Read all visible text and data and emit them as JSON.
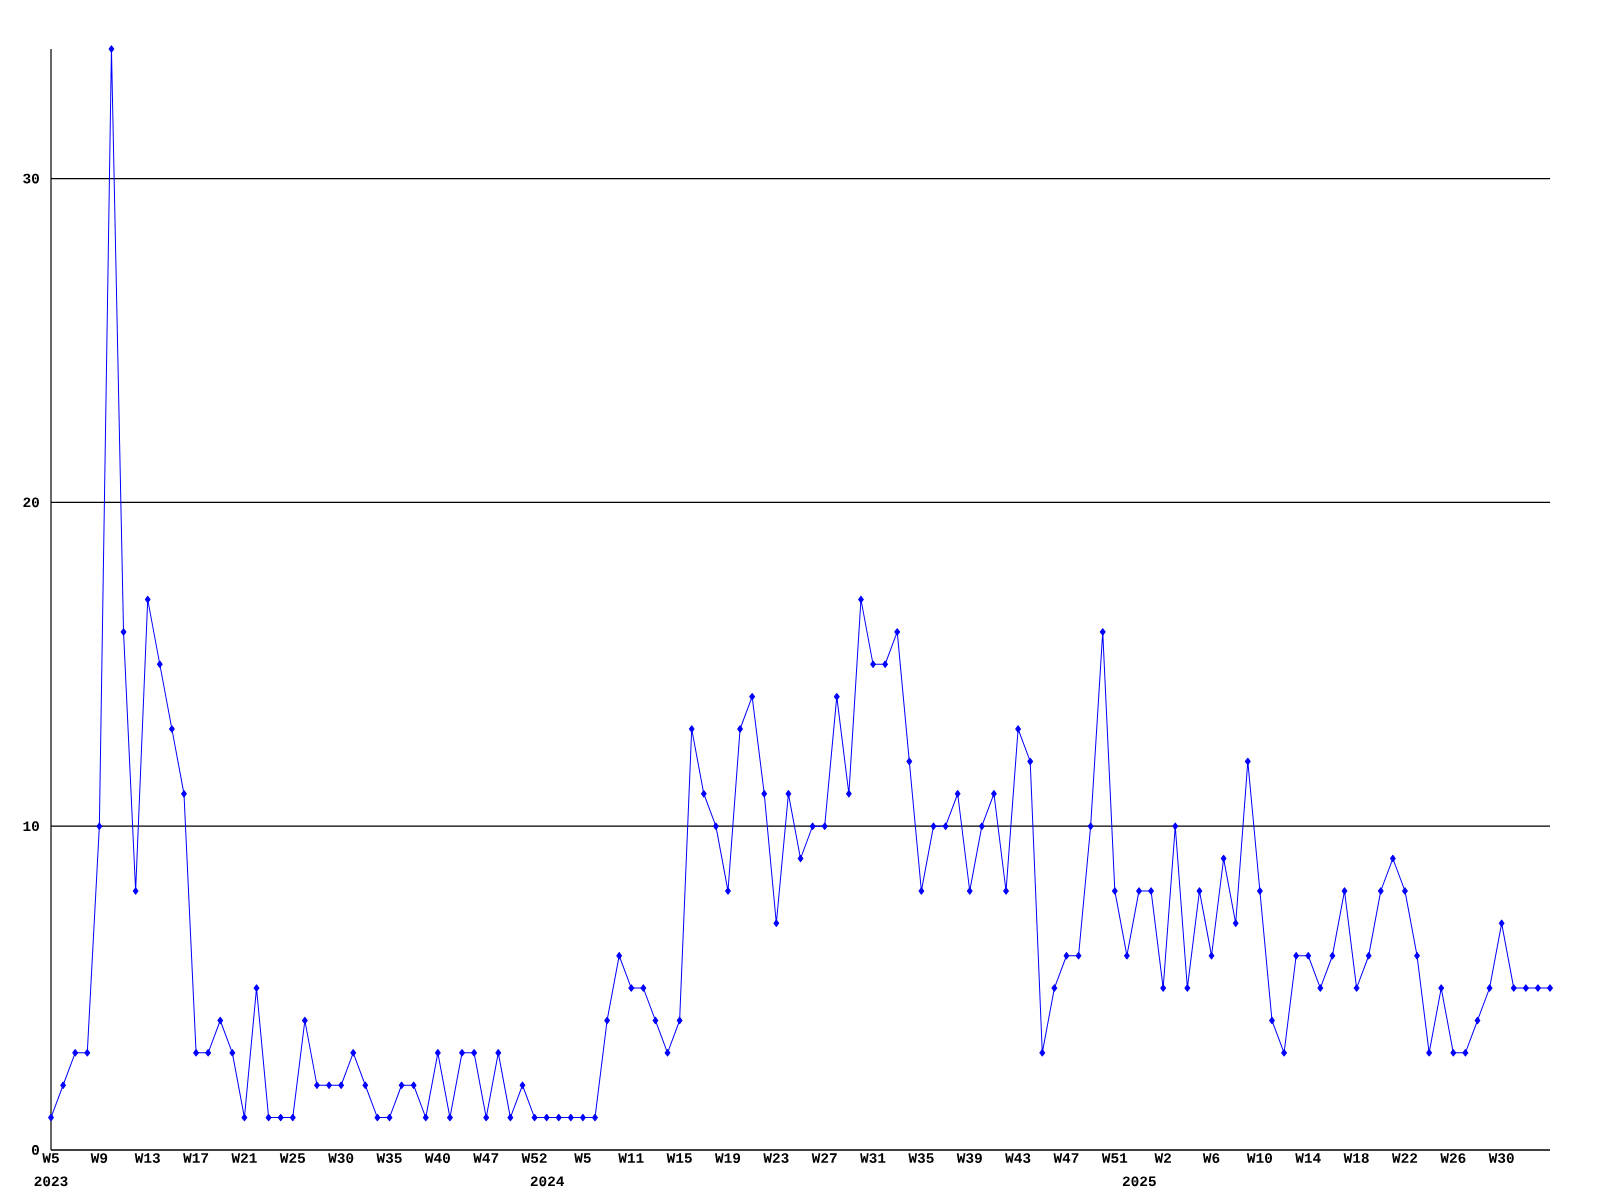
{
  "chart_data": {
    "type": "line",
    "color": "#0000ff",
    "marker": "diamond",
    "grid": "y",
    "categories": [
      "W5",
      null,
      null,
      null,
      "W9",
      null,
      null,
      null,
      "W13",
      null,
      null,
      null,
      "W17",
      null,
      null,
      null,
      "W21",
      null,
      null,
      null,
      "W25",
      null,
      null,
      null,
      "W30",
      null,
      null,
      null,
      "W35",
      null,
      null,
      null,
      "W40",
      null,
      null,
      null,
      "W47",
      null,
      null,
      null,
      "W52",
      null,
      null,
      null,
      "W5",
      null,
      null,
      null,
      "W11",
      null,
      null,
      null,
      "W15",
      null,
      null,
      null,
      "W19",
      null,
      null,
      null,
      "W23",
      null,
      null,
      null,
      "W27",
      null,
      null,
      null,
      "W31",
      null,
      null,
      null,
      "W35",
      null,
      null,
      null,
      "W39",
      null,
      null,
      null,
      "W43",
      null,
      null,
      null,
      "W47",
      null,
      null,
      null,
      "W51",
      null,
      null,
      null,
      "W2",
      null,
      null,
      null,
      "W6",
      null,
      null,
      null,
      "W10",
      null,
      null,
      null,
      "W14",
      null,
      null,
      null,
      "W18",
      null,
      null,
      null,
      "W22",
      null,
      null,
      null,
      "W26",
      null,
      null,
      null,
      "W30",
      null,
      null,
      null,
      null
    ],
    "values": [
      1,
      2,
      3,
      3,
      10,
      34,
      16,
      8,
      17,
      15,
      13,
      11,
      3,
      3,
      4,
      3,
      1,
      5,
      1,
      1,
      1,
      4,
      2,
      2,
      2,
      3,
      2,
      1,
      1,
      2,
      2,
      1,
      3,
      1,
      3,
      3,
      1,
      3,
      1,
      2,
      1,
      1,
      1,
      1,
      1,
      1,
      4,
      6,
      5,
      5,
      4,
      3,
      4,
      13,
      11,
      10,
      8,
      13,
      14,
      11,
      7,
      11,
      9,
      10,
      10,
      14,
      11,
      17,
      15,
      15,
      16,
      12,
      8,
      10,
      10,
      11,
      8,
      10,
      11,
      8,
      13,
      12,
      3,
      5,
      6,
      6,
      10,
      16,
      8,
      6,
      8,
      8,
      5,
      10,
      5,
      8,
      6,
      9,
      7,
      12,
      8,
      4,
      3,
      6,
      6,
      5,
      6,
      8,
      5,
      6,
      8,
      9,
      8,
      6,
      3,
      5,
      3,
      3,
      4,
      5,
      7,
      5,
      5,
      5,
      5
    ],
    "ylim": [
      0,
      34
    ],
    "yticks": [
      0,
      10,
      20,
      30
    ],
    "annotations": [
      "2023",
      "2024",
      "2025"
    ]
  }
}
